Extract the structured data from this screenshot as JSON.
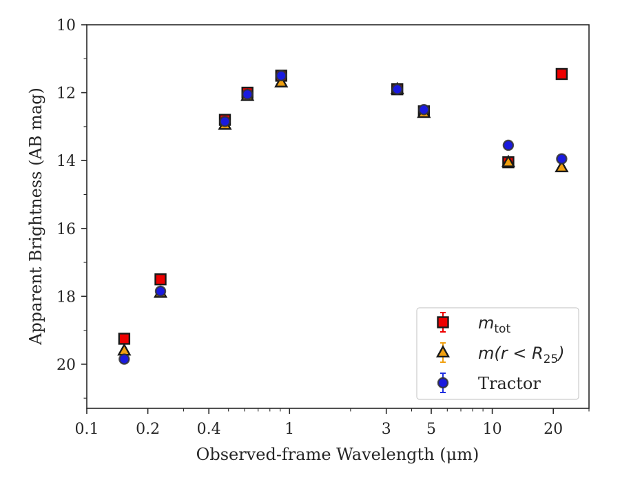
{
  "chart_data": {
    "type": "scatter",
    "title": "",
    "xlabel": "Observed-frame Wavelength (μm)",
    "ylabel": "Apparent Brightness (AB mag)",
    "xscale": "log",
    "xlim": [
      0.1,
      30
    ],
    "ylim": [
      21.3,
      10
    ],
    "y_inverted": true,
    "xticks": [
      0.1,
      0.2,
      0.4,
      1,
      3,
      5,
      10,
      20
    ],
    "xtick_labels": [
      "0.1",
      "0.2",
      "0.4",
      "1",
      "3",
      "5",
      "10",
      "20"
    ],
    "yticks": [
      10,
      12,
      14,
      16,
      18,
      20
    ],
    "ytick_labels": [
      "10",
      "12",
      "14",
      "16",
      "18",
      "20"
    ],
    "grid": false,
    "legend_position": "bottom-right",
    "series": [
      {
        "name": "m_tot",
        "marker": "square",
        "color": "#ee0000",
        "errcolor": "#ee0000",
        "x": [
          0.153,
          0.231,
          0.48,
          0.62,
          0.91,
          3.4,
          4.6,
          12.0,
          22.0
        ],
        "y": [
          19.25,
          17.5,
          12.8,
          12.0,
          11.5,
          11.9,
          12.55,
          14.05,
          11.45
        ]
      },
      {
        "name": "m(r < R25)",
        "marker": "triangle",
        "color": "#f0a010",
        "errcolor": "#f0a010",
        "x": [
          0.153,
          0.231,
          0.48,
          0.62,
          0.91,
          3.4,
          4.6,
          12.0,
          22.0
        ],
        "y": [
          19.6,
          17.9,
          12.95,
          12.1,
          11.7,
          11.9,
          12.6,
          14.05,
          14.2
        ]
      },
      {
        "name": "Tractor",
        "marker": "circle",
        "color": "#1a1adf",
        "errcolor": "#2030e0",
        "x": [
          0.153,
          0.231,
          0.48,
          0.62,
          0.91,
          3.4,
          4.6,
          12.0,
          22.0
        ],
        "y": [
          19.85,
          17.85,
          12.85,
          12.05,
          11.5,
          11.9,
          12.5,
          13.55,
          13.95
        ]
      }
    ],
    "legend": [
      {
        "label_italic": "m",
        "label_sub": "tot",
        "label_rest": ""
      },
      {
        "label_italic": "m(r < R",
        "label_sub": "25",
        "label_rest": ")"
      },
      {
        "label_plain": "Tractor"
      }
    ]
  }
}
